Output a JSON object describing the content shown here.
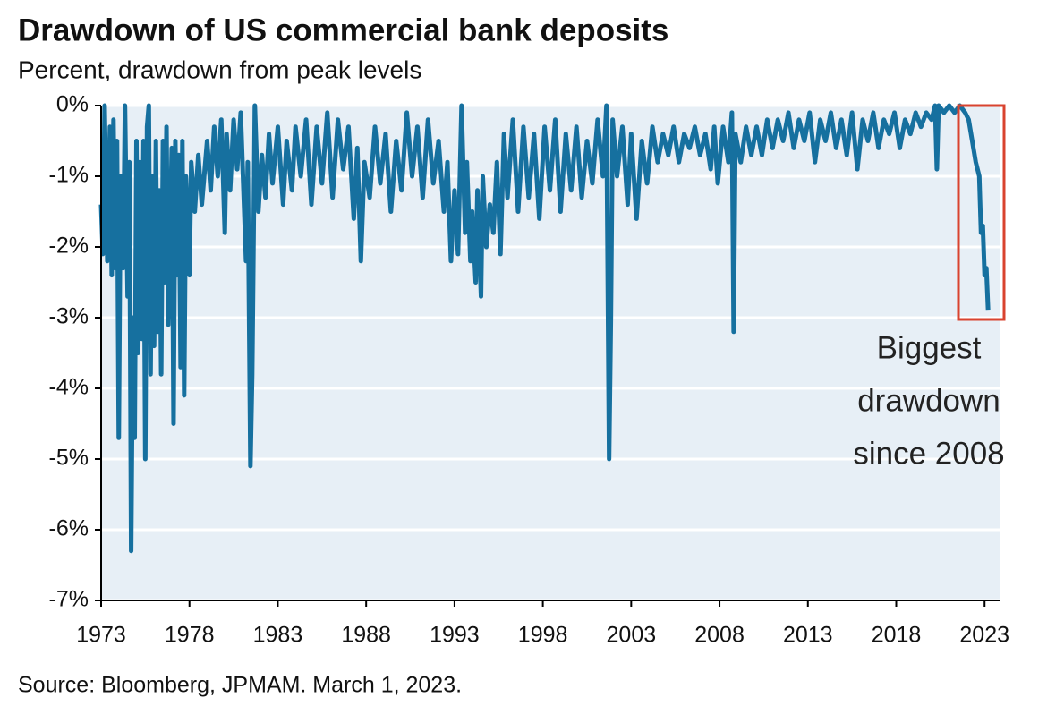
{
  "chart_data": {
    "type": "line",
    "title": "Drawdown of US commercial bank deposits",
    "subtitle": "Percent, drawdown from peak levels",
    "source": "Source: Bloomberg, JPMAM. March 1, 2023.",
    "annotation": [
      "Biggest",
      "drawdown",
      "since 2008"
    ],
    "color": "#16709f",
    "x": [
      1973.0,
      1973.1,
      1973.2,
      1973.35,
      1973.5,
      1973.6,
      1973.7,
      1973.8,
      1973.9,
      1974.0,
      1974.1,
      1974.25,
      1974.35,
      1974.5,
      1974.6,
      1974.7,
      1974.8,
      1974.9,
      1975.0,
      1975.1,
      1975.2,
      1975.3,
      1975.4,
      1975.5,
      1975.6,
      1975.7,
      1975.8,
      1975.9,
      1976.0,
      1976.1,
      1976.2,
      1976.3,
      1976.4,
      1976.5,
      1976.6,
      1976.7,
      1976.8,
      1977.0,
      1977.1,
      1977.2,
      1977.3,
      1977.4,
      1977.5,
      1977.6,
      1977.7,
      1977.8,
      1978.0,
      1978.1,
      1978.3,
      1978.5,
      1978.7,
      1979.0,
      1979.2,
      1979.4,
      1979.6,
      1979.8,
      1980.0,
      1980.1,
      1980.3,
      1980.5,
      1980.7,
      1980.9,
      1981.2,
      1981.3,
      1981.45,
      1981.55,
      1981.6,
      1981.7,
      1981.9,
      1982.1,
      1982.3,
      1982.5,
      1982.7,
      1983.0,
      1983.3,
      1983.5,
      1983.8,
      1984.0,
      1984.3,
      1984.6,
      1984.9,
      1985.2,
      1985.5,
      1985.8,
      1986.1,
      1986.4,
      1986.7,
      1987.0,
      1987.3,
      1987.5,
      1987.7,
      1987.9,
      1988.2,
      1988.5,
      1988.8,
      1989.1,
      1989.4,
      1989.7,
      1990.0,
      1990.3,
      1990.6,
      1990.9,
      1991.2,
      1991.5,
      1991.8,
      1992.1,
      1992.4,
      1992.6,
      1992.8,
      1993.0,
      1993.2,
      1993.4,
      1993.6,
      1993.7,
      1993.9,
      1994.0,
      1994.2,
      1994.3,
      1994.5,
      1994.6,
      1994.8,
      1995.0,
      1995.2,
      1995.4,
      1995.6,
      1995.8,
      1996.0,
      1996.3,
      1996.6,
      1996.9,
      1997.2,
      1997.5,
      1997.8,
      1998.1,
      1998.4,
      1998.7,
      1999.0,
      1999.3,
      1999.6,
      1999.9,
      2000.2,
      2000.5,
      2000.8,
      2001.1,
      2001.4,
      2001.6,
      2001.75,
      2001.85,
      2001.95,
      2002.2,
      2002.5,
      2002.8,
      2003.0,
      2003.3,
      2003.6,
      2003.9,
      2004.2,
      2004.5,
      2004.8,
      2005.1,
      2005.4,
      2005.7,
      2006.0,
      2006.3,
      2006.6,
      2006.9,
      2007.2,
      2007.5,
      2007.7,
      2007.9,
      2008.2,
      2008.5,
      2008.7,
      2008.8,
      2008.9,
      2009.2,
      2009.5,
      2009.8,
      2010.1,
      2010.4,
      2010.7,
      2011.0,
      2011.3,
      2011.6,
      2011.9,
      2012.2,
      2012.5,
      2012.8,
      2013.1,
      2013.4,
      2013.7,
      2014.0,
      2014.3,
      2014.6,
      2014.9,
      2015.2,
      2015.5,
      2015.8,
      2016.1,
      2016.4,
      2016.7,
      2017.0,
      2017.3,
      2017.6,
      2017.9,
      2018.2,
      2018.5,
      2018.8,
      2019.1,
      2019.4,
      2019.7,
      2020.0,
      2020.2,
      2020.3,
      2020.4,
      2020.7,
      2021.0,
      2021.3,
      2021.6,
      2021.9,
      2022.1,
      2022.3,
      2022.5,
      2022.7,
      2022.8,
      2022.9,
      2023.0,
      2023.1,
      2023.2
    ],
    "values": [
      -1.4,
      -2.1,
      0,
      -2.2,
      -0.3,
      -2.4,
      -0.2,
      -2.3,
      -0.5,
      -4.7,
      -1.0,
      -2.3,
      0,
      -2.7,
      -0.8,
      -6.3,
      -3.0,
      -4.7,
      -0.5,
      -3.5,
      -0.8,
      -3.3,
      -0.5,
      -5.0,
      -0.3,
      0,
      -3.8,
      -1.0,
      -3.4,
      -0.5,
      -3.2,
      -1.2,
      -3.8,
      -0.5,
      -2.5,
      -0.3,
      -3.1,
      -0.6,
      -4.5,
      -0.5,
      -2.4,
      -0.7,
      -3.7,
      -0.5,
      -4.1,
      -1.0,
      -2.4,
      -0.8,
      -1.5,
      -0.7,
      -1.4,
      -0.5,
      -1.2,
      -0.3,
      -1.0,
      -0.2,
      -1.8,
      -0.4,
      -1.2,
      -0.2,
      -0.9,
      -0.1,
      -2.2,
      -0.8,
      -5.1,
      -3.8,
      -2.6,
      0,
      -1.5,
      -0.7,
      -1.3,
      -0.4,
      -1.1,
      -0.3,
      -1.4,
      -0.5,
      -1.2,
      -0.3,
      -1.0,
      -0.2,
      -1.4,
      -0.3,
      -1.1,
      -0.1,
      -1.3,
      -0.2,
      -0.9,
      -0.3,
      -1.6,
      -0.6,
      -2.2,
      -0.8,
      -1.3,
      -0.3,
      -1.1,
      -0.4,
      -1.5,
      -0.5,
      -1.2,
      -0.1,
      -1.0,
      -0.3,
      -1.3,
      -0.2,
      -1.1,
      -0.5,
      -1.5,
      -0.8,
      -2.2,
      -1.2,
      -2.1,
      0,
      -1.8,
      -0.8,
      -2.2,
      -1.5,
      -2.5,
      -1.2,
      -2.7,
      -1.0,
      -2.0,
      -1.4,
      -1.8,
      -0.8,
      -2.1,
      -0.4,
      -1.3,
      -0.2,
      -1.5,
      -0.3,
      -1.3,
      -0.4,
      -1.6,
      -0.3,
      -1.2,
      -0.2,
      -1.5,
      -0.4,
      -1.2,
      -0.3,
      -1.3,
      -0.5,
      -1.1,
      -0.2,
      -1.0,
      0,
      -5.0,
      -3.0,
      -0.2,
      -1.0,
      -0.3,
      -1.4,
      -0.4,
      -1.6,
      -0.5,
      -1.1,
      -0.3,
      -0.8,
      -0.4,
      -0.7,
      -0.3,
      -0.8,
      -0.4,
      -0.6,
      -0.3,
      -0.7,
      -0.4,
      -0.9,
      -0.3,
      -1.1,
      -0.3,
      -0.8,
      -0.1,
      -3.2,
      -0.4,
      -0.8,
      -0.3,
      -0.7,
      -0.3,
      -0.7,
      -0.2,
      -0.6,
      -0.2,
      -0.5,
      -0.1,
      -0.6,
      -0.2,
      -0.5,
      -0.1,
      -0.8,
      -0.2,
      -0.5,
      -0.1,
      -0.6,
      -0.2,
      -0.7,
      -0.1,
      -0.9,
      -0.2,
      -0.5,
      -0.1,
      -0.6,
      -0.2,
      -0.4,
      -0.1,
      -0.6,
      -0.2,
      -0.4,
      -0.1,
      -0.3,
      -0.1,
      -0.2,
      0,
      -0.9,
      0,
      -0.1,
      0,
      -0.1,
      0,
      -0.1,
      -0.2,
      -0.5,
      -0.8,
      -1.0,
      -1.8,
      -1.7,
      -2.4,
      -2.3,
      -2.9
    ],
    "xlim": [
      1973,
      2023.9
    ],
    "xticks": [
      1973,
      1978,
      1983,
      1988,
      1993,
      1998,
      2003,
      2008,
      2013,
      2018,
      2023
    ],
    "ylim": [
      -7,
      0
    ],
    "yticks": [
      {
        "value": 0,
        "label": "0%"
      },
      {
        "value": -1,
        "label": "-1%"
      },
      {
        "value": -2,
        "label": "-2%"
      },
      {
        "value": -3,
        "label": "-3%"
      },
      {
        "value": -4,
        "label": "-4%"
      },
      {
        "value": -5,
        "label": "-5%"
      },
      {
        "value": -6,
        "label": "-6%"
      },
      {
        "value": -7,
        "label": "-7%"
      }
    ],
    "grid": true
  }
}
